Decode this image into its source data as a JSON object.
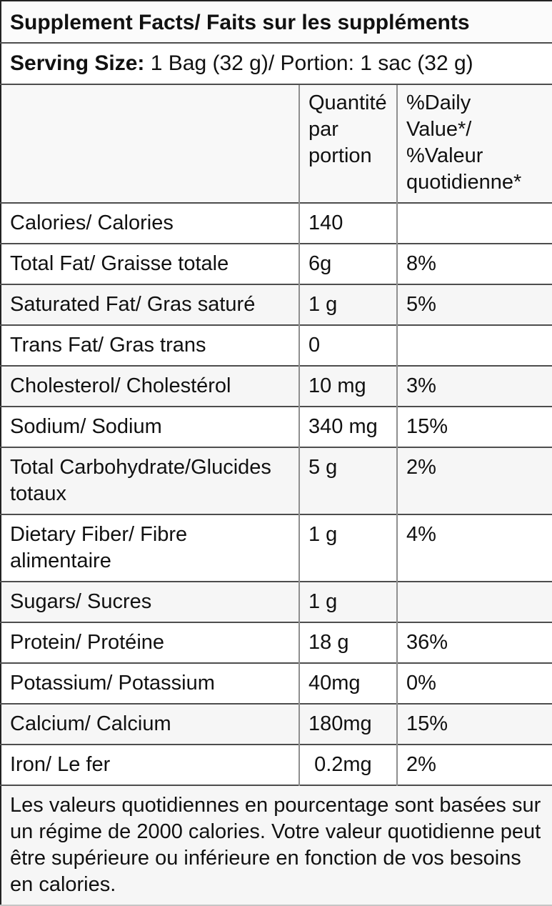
{
  "title": "Supplement Facts/ Faits sur les suppléments",
  "serving": {
    "label": "Serving Size:",
    "value": " 1 Bag (32 g)/ Portion: 1 sac (32 g)"
  },
  "columns": {
    "amount_header": "Quantité\npar\nportion",
    "daily_value_header": "%Daily\nValue*/\n%Valeur\nquotidienne*"
  },
  "rows": [
    {
      "label": "Calories/ Calories",
      "amount": "140",
      "daily_value": "",
      "shaded": false
    },
    {
      "label": "Total Fat/ Graisse totale",
      "amount": "6g",
      "daily_value": "8%",
      "shaded": false
    },
    {
      "label": "Saturated Fat/ Gras saturé",
      "amount": "1 g",
      "daily_value": "5%",
      "shaded": true
    },
    {
      "label": "Trans Fat/ Gras trans",
      "amount": "0",
      "daily_value": "",
      "shaded": false
    },
    {
      "label": "Cholesterol/ Cholestérol",
      "amount": "10 mg",
      "daily_value": "3%",
      "shaded": true
    },
    {
      "label": "Sodium/ Sodium",
      "amount": "340 mg",
      "daily_value": "15%",
      "shaded": false
    },
    {
      "label": "Total Carbohydrate/Glucides totaux",
      "amount": "5 g",
      "daily_value": "2%",
      "shaded": true
    },
    {
      "label": "Dietary Fiber/ Fibre alimentaire",
      "amount": "1 g",
      "daily_value": "4%",
      "shaded": false
    },
    {
      "label": "Sugars/ Sucres",
      "amount": "1 g",
      "daily_value": "",
      "shaded": true
    },
    {
      "label": "Protein/ Protéine",
      "amount": "18 g",
      "daily_value": "36%",
      "shaded": false
    },
    {
      "label": "Potassium/ Potassium",
      "amount": "40mg",
      "daily_value": "0%",
      "shaded": false
    },
    {
      "label": "Calcium/ Calcium",
      "amount": "180mg",
      "daily_value": "15%",
      "shaded": true
    },
    {
      "label": "Iron/ Le fer",
      "amount": " 0.2mg",
      "daily_value": "2%",
      "shaded": false
    }
  ],
  "footnote": "Les valeurs quotidiennes en pourcentage sont basées sur un régime de 2000 calories. Votre valeur quotidienne peut être supérieure ou inférieure en fonction de vos besoins en calories."
}
